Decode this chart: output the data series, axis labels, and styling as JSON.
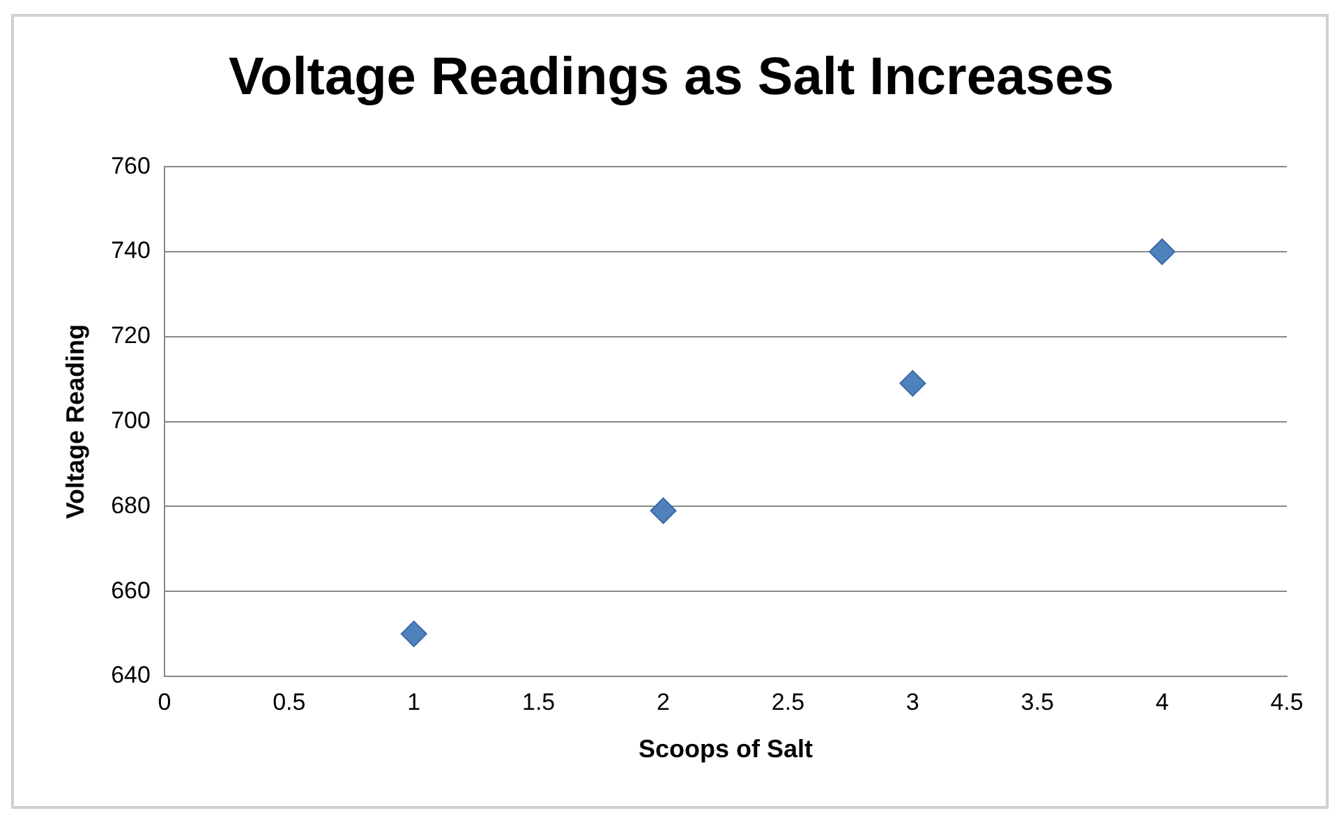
{
  "chart_data": {
    "type": "scatter",
    "title": "Voltage Readings as Salt Increases",
    "xlabel": "Scoops of Salt",
    "ylabel": "Voltage Reading",
    "x": [
      1,
      2,
      3,
      4
    ],
    "series": [
      {
        "color": "#4f81bd",
        "values": [
          650,
          679,
          709,
          740
        ]
      }
    ],
    "xlim": [
      0,
      4.5
    ],
    "xticks": [
      0,
      0.5,
      1,
      1.5,
      2,
      2.5,
      3,
      3.5,
      4,
      4.5
    ],
    "ylim": [
      640,
      760
    ],
    "yticks": [
      640,
      660,
      680,
      700,
      720,
      740,
      760
    ],
    "grid": "y",
    "legend": false,
    "marker": "diamond"
  }
}
